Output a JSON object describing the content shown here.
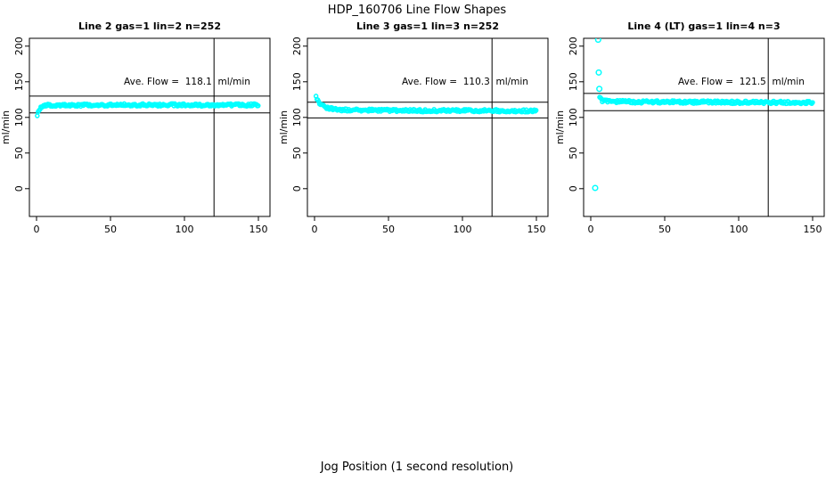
{
  "figure": {
    "title": "HDP_160706  Line Flow Shapes",
    "xlabel": "Jog Position (1 second resolution)",
    "background_color": "#ffffff",
    "point_color": "#00ffff",
    "line_color": "#000000"
  },
  "chart_data": [
    {
      "type": "scatter",
      "title": "Line 2 gas=1 lin=2 n=252",
      "ylabel": "ml/min",
      "annotation": "Ave. Flow =  118.1  ml/min",
      "ave_flow": 118.1,
      "n": 252,
      "x_ticks": [
        0,
        50,
        100,
        150
      ],
      "y_ticks": [
        0,
        50,
        100,
        150,
        200
      ],
      "xlim": [
        -5,
        160
      ],
      "ylim": [
        -39,
        211
      ],
      "vline_x": 120,
      "ref_lines": [
        129.9,
        106.3
      ],
      "profile": [
        [
          0.5,
          103
        ],
        [
          1,
          107
        ],
        [
          1.5,
          110
        ],
        [
          2,
          112
        ],
        [
          3,
          114.5
        ],
        [
          4,
          115.8
        ],
        [
          6,
          116.8
        ],
        [
          10,
          117.2
        ],
        [
          60,
          117.6
        ],
        [
          150,
          117.4
        ]
      ],
      "x_range": [
        0.5,
        150
      ],
      "step": 0.6,
      "jitter": 1.8,
      "outliers": []
    },
    {
      "type": "scatter",
      "title": "Line 3 gas=1 lin=3 n=252",
      "ylabel": "ml/min",
      "annotation": "Ave. Flow =  110.3  ml/min",
      "ave_flow": 110.3,
      "n": 252,
      "x_ticks": [
        0,
        50,
        100,
        150
      ],
      "y_ticks": [
        0,
        50,
        100,
        150,
        200
      ],
      "xlim": [
        -5,
        160
      ],
      "ylim": [
        -39,
        211
      ],
      "vline_x": 120,
      "ref_lines": [
        121.3,
        99.3
      ],
      "profile": [
        [
          1,
          129
        ],
        [
          2,
          124
        ],
        [
          3,
          120.5
        ],
        [
          5,
          117
        ],
        [
          8,
          114
        ],
        [
          12,
          112
        ],
        [
          18,
          110.8
        ],
        [
          25,
          110.3
        ],
        [
          60,
          109.6
        ],
        [
          150,
          109.3
        ]
      ],
      "x_range": [
        1,
        150
      ],
      "step": 0.6,
      "jitter": 1.8,
      "outliers": []
    },
    {
      "type": "scatter",
      "title": "Line 4 (LT) gas=1 lin=4 n=3",
      "ylabel": "ml/min",
      "annotation": "Ave. Flow =  121.5  ml/min",
      "ave_flow": 121.5,
      "n": 3,
      "x_ticks": [
        0,
        50,
        100,
        150
      ],
      "y_ticks": [
        0,
        50,
        100,
        150,
        200
      ],
      "xlim": [
        -5,
        160
      ],
      "ylim": [
        -39,
        211
      ],
      "vline_x": 120,
      "ref_lines": [
        133.7,
        109.4
      ],
      "profile": [
        [
          6,
          128
        ],
        [
          7,
          125
        ],
        [
          8,
          123.6
        ],
        [
          10,
          122.8
        ],
        [
          14,
          122.2
        ],
        [
          40,
          121.7
        ],
        [
          100,
          121.2
        ],
        [
          150,
          120.7
        ]
      ],
      "x_range": [
        6,
        150
      ],
      "step": 0.6,
      "jitter": 2.0,
      "outliers": [
        [
          5,
          209
        ],
        [
          5.4,
          163
        ],
        [
          5.8,
          140
        ],
        [
          3,
          1
        ]
      ]
    }
  ]
}
